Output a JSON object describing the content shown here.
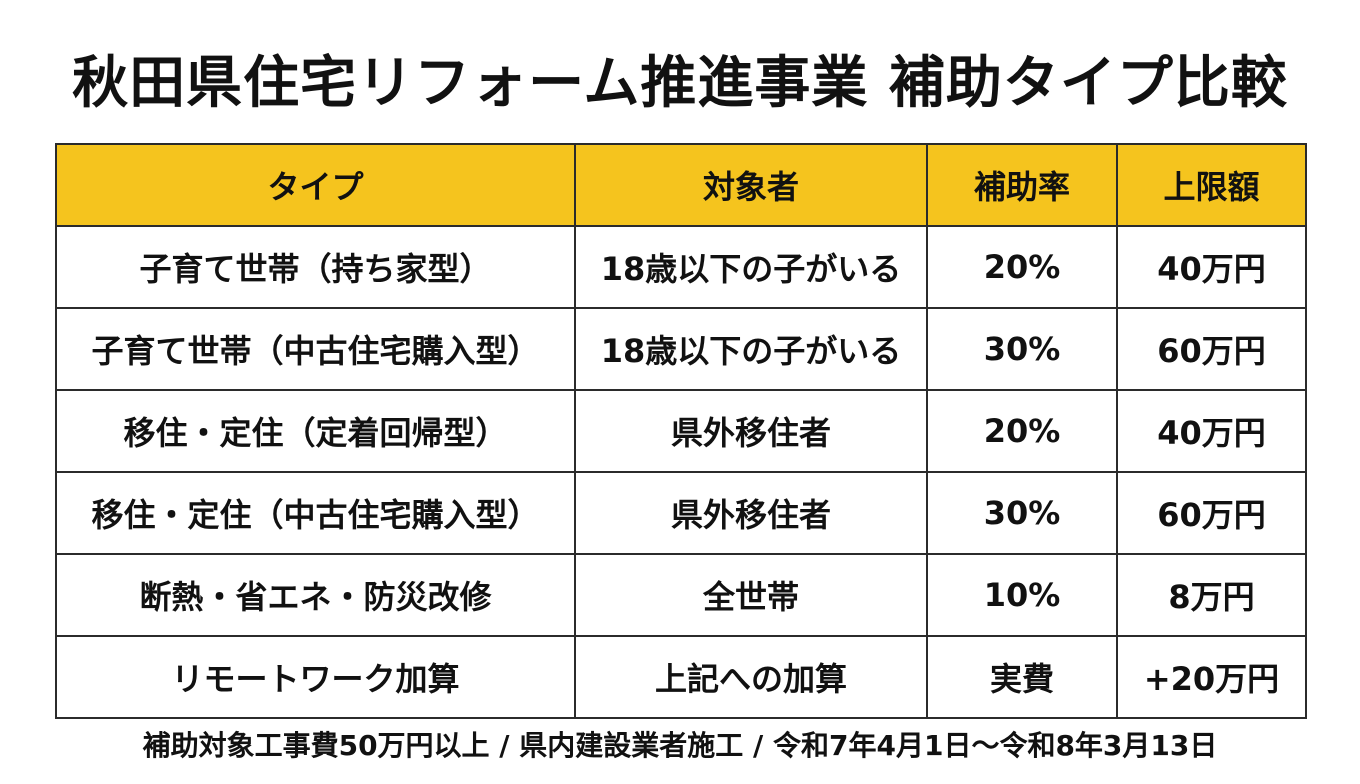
{
  "title": "秋田県住宅リフォーム推進事業 補助タイプ比較",
  "colors": {
    "header_bg": "#f5c41e",
    "border": "#2b2b2b",
    "text": "#111111"
  },
  "table": {
    "headers": [
      "タイプ",
      "対象者",
      "補助率",
      "上限額"
    ],
    "rows": [
      [
        "子育て世帯（持ち家型）",
        "18歳以下の子がいる",
        "20%",
        "40万円"
      ],
      [
        "子育て世帯（中古住宅購入型）",
        "18歳以下の子がいる",
        "30%",
        "60万円"
      ],
      [
        "移住・定住（定着回帰型）",
        "県外移住者",
        "20%",
        "40万円"
      ],
      [
        "移住・定住（中古住宅購入型）",
        "県外移住者",
        "30%",
        "60万円"
      ],
      [
        "断熱・省エネ・防災改修",
        "全世帯",
        "10%",
        "8万円"
      ],
      [
        "リモートワーク加算",
        "上記への加算",
        "実費",
        "+20万円"
      ]
    ]
  },
  "footer": "補助対象工事費50万円以上 / 県内建設業者施工 / 令和7年4月1日～令和8年3月13日"
}
